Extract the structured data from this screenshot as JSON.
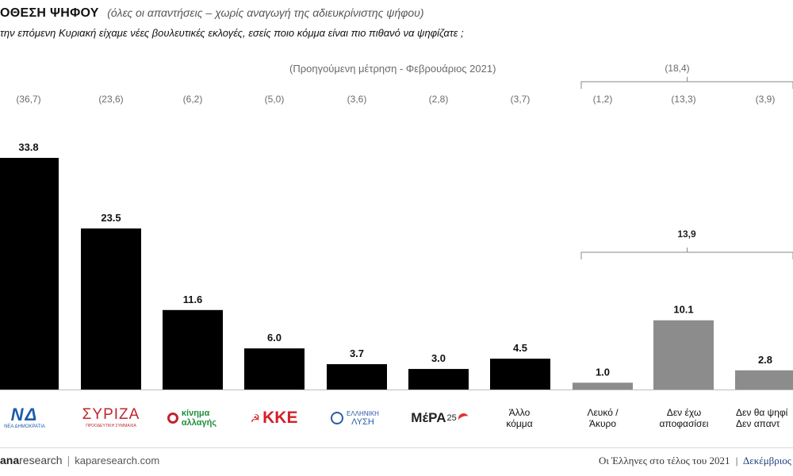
{
  "header": {
    "title": "ΟΘΕΣΗ ΨΗΦΟΥ",
    "subtitle": "(όλες οι απαντήσεις – χωρίς αναγωγή  της αδιευκρίνιστης ψήφου)",
    "question": "την επόμενη Κυριακή  είχαμε νέες βουλευτικές  εκλογές, εσείς ποιο κόμμα είναι πιο πιθανό να ψηφίζατε ;"
  },
  "chart_data": {
    "type": "bar",
    "title": "",
    "xlabel": "",
    "ylabel": "",
    "ylim": [
      0,
      35
    ],
    "categories": [
      "ΝΔ",
      "ΣΥΡΙΖΑ",
      "Κίνημα Αλλαγής",
      "ΚΚΕ",
      "Ελληνική Λύση",
      "ΜέΡΑ25",
      "Άλλο κόμμα",
      "Λευκό / Άκυρο",
      "Δεν έχω αποφασίσει",
      "Δεν θα ψηφίσω / Δεν απαντώ"
    ],
    "values": [
      33.8,
      23.5,
      11.6,
      6.0,
      3.7,
      3.0,
      4.5,
      1.0,
      10.1,
      2.8
    ],
    "value_labels": [
      "33.8",
      "23.5",
      "11.6",
      "6.0",
      "3.7",
      "3.0",
      "4.5",
      "1.0",
      "10.1",
      "2.8"
    ],
    "previous_measurement_title": "(Προηγούμενη μέτρηση - Φεβρουάριος 2021)",
    "previous_labels": [
      "(36,7)",
      "(23,6)",
      "(6,2)",
      "(5,0)",
      "(3,6)",
      "(2,8)",
      "(3,7)",
      "(1,2)",
      "(13,3)",
      "(3,9)"
    ],
    "previous_group_total": "(18,4)",
    "current_group_total": "13,9",
    "bar_colors": [
      "#000000",
      "#000000",
      "#000000",
      "#000000",
      "#000000",
      "#000000",
      "#000000",
      "#8c8c8c",
      "#8c8c8c",
      "#8c8c8c"
    ],
    "grid": false,
    "legend": "none"
  },
  "logos": {
    "nd": {
      "mark": "ΝΔ",
      "text": "ΝΕΑ ΔΗΜΟΚΡΑΤΙΑ"
    },
    "syriza": {
      "mark": "ΣΥΡΙΖΑ",
      "text": "ΠΡΟΟΔΕΥΤΙΚΗ ΣΥΜΜΑΧΙΑ"
    },
    "kinal": {
      "line1": "κίνημα",
      "line2": "αλλαγής"
    },
    "kke": {
      "mark": "ΚΚΕ"
    },
    "elliniki": {
      "line1": "ΕΛΛΗΝΙΚΗ",
      "line2": "ΛΥΣΗ"
    },
    "mera25": {
      "mark": "ΜέΡΑ",
      "num": "25"
    }
  },
  "category_labels": {
    "allo": [
      "Άλλο",
      "κόμμα"
    ],
    "lefko": [
      "Λευκό /",
      "Άκυρο"
    ],
    "den_exo": [
      "Δεν έχω",
      "αποφασίσει"
    ],
    "den_tha": [
      "Δεν θα ψηφί",
      "Δεν απαντ"
    ]
  },
  "colors": {
    "party_bar": "#000000",
    "other_bar": "#8c8c8c",
    "nd_blue": "#1d5cab",
    "syriza_red": "#c0262d",
    "kinal_green": "#1f8f3a",
    "kke_red": "#d32027",
    "el_blue": "#2b5aa8",
    "mera_red": "#e0322b"
  },
  "footer": {
    "brand": "ana",
    "brand_suffix": "research",
    "separator": "|",
    "site": "kaparesearch.com",
    "right_text": "Οι Έλληνες στο τέλος του 2021",
    "right_sep": "|",
    "right_month": "Δεκέμβριος"
  }
}
